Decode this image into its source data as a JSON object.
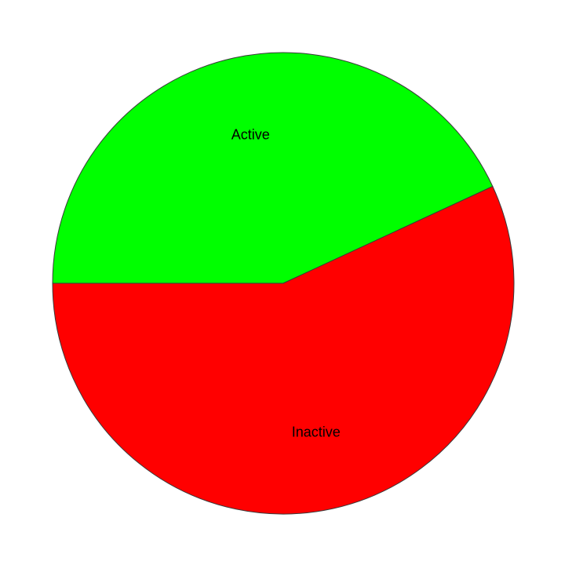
{
  "chart_data": {
    "type": "pie",
    "title": "",
    "slices": [
      {
        "label": "Active",
        "value": 43.1,
        "color": "#00ff00"
      },
      {
        "label": "Inactive",
        "value": 56.9,
        "color": "#ff0000"
      }
    ],
    "start_angle_deg": 180,
    "direction": "clockwise",
    "edge_color": "#3a3a3a",
    "legend": "none",
    "labels": "inside"
  }
}
